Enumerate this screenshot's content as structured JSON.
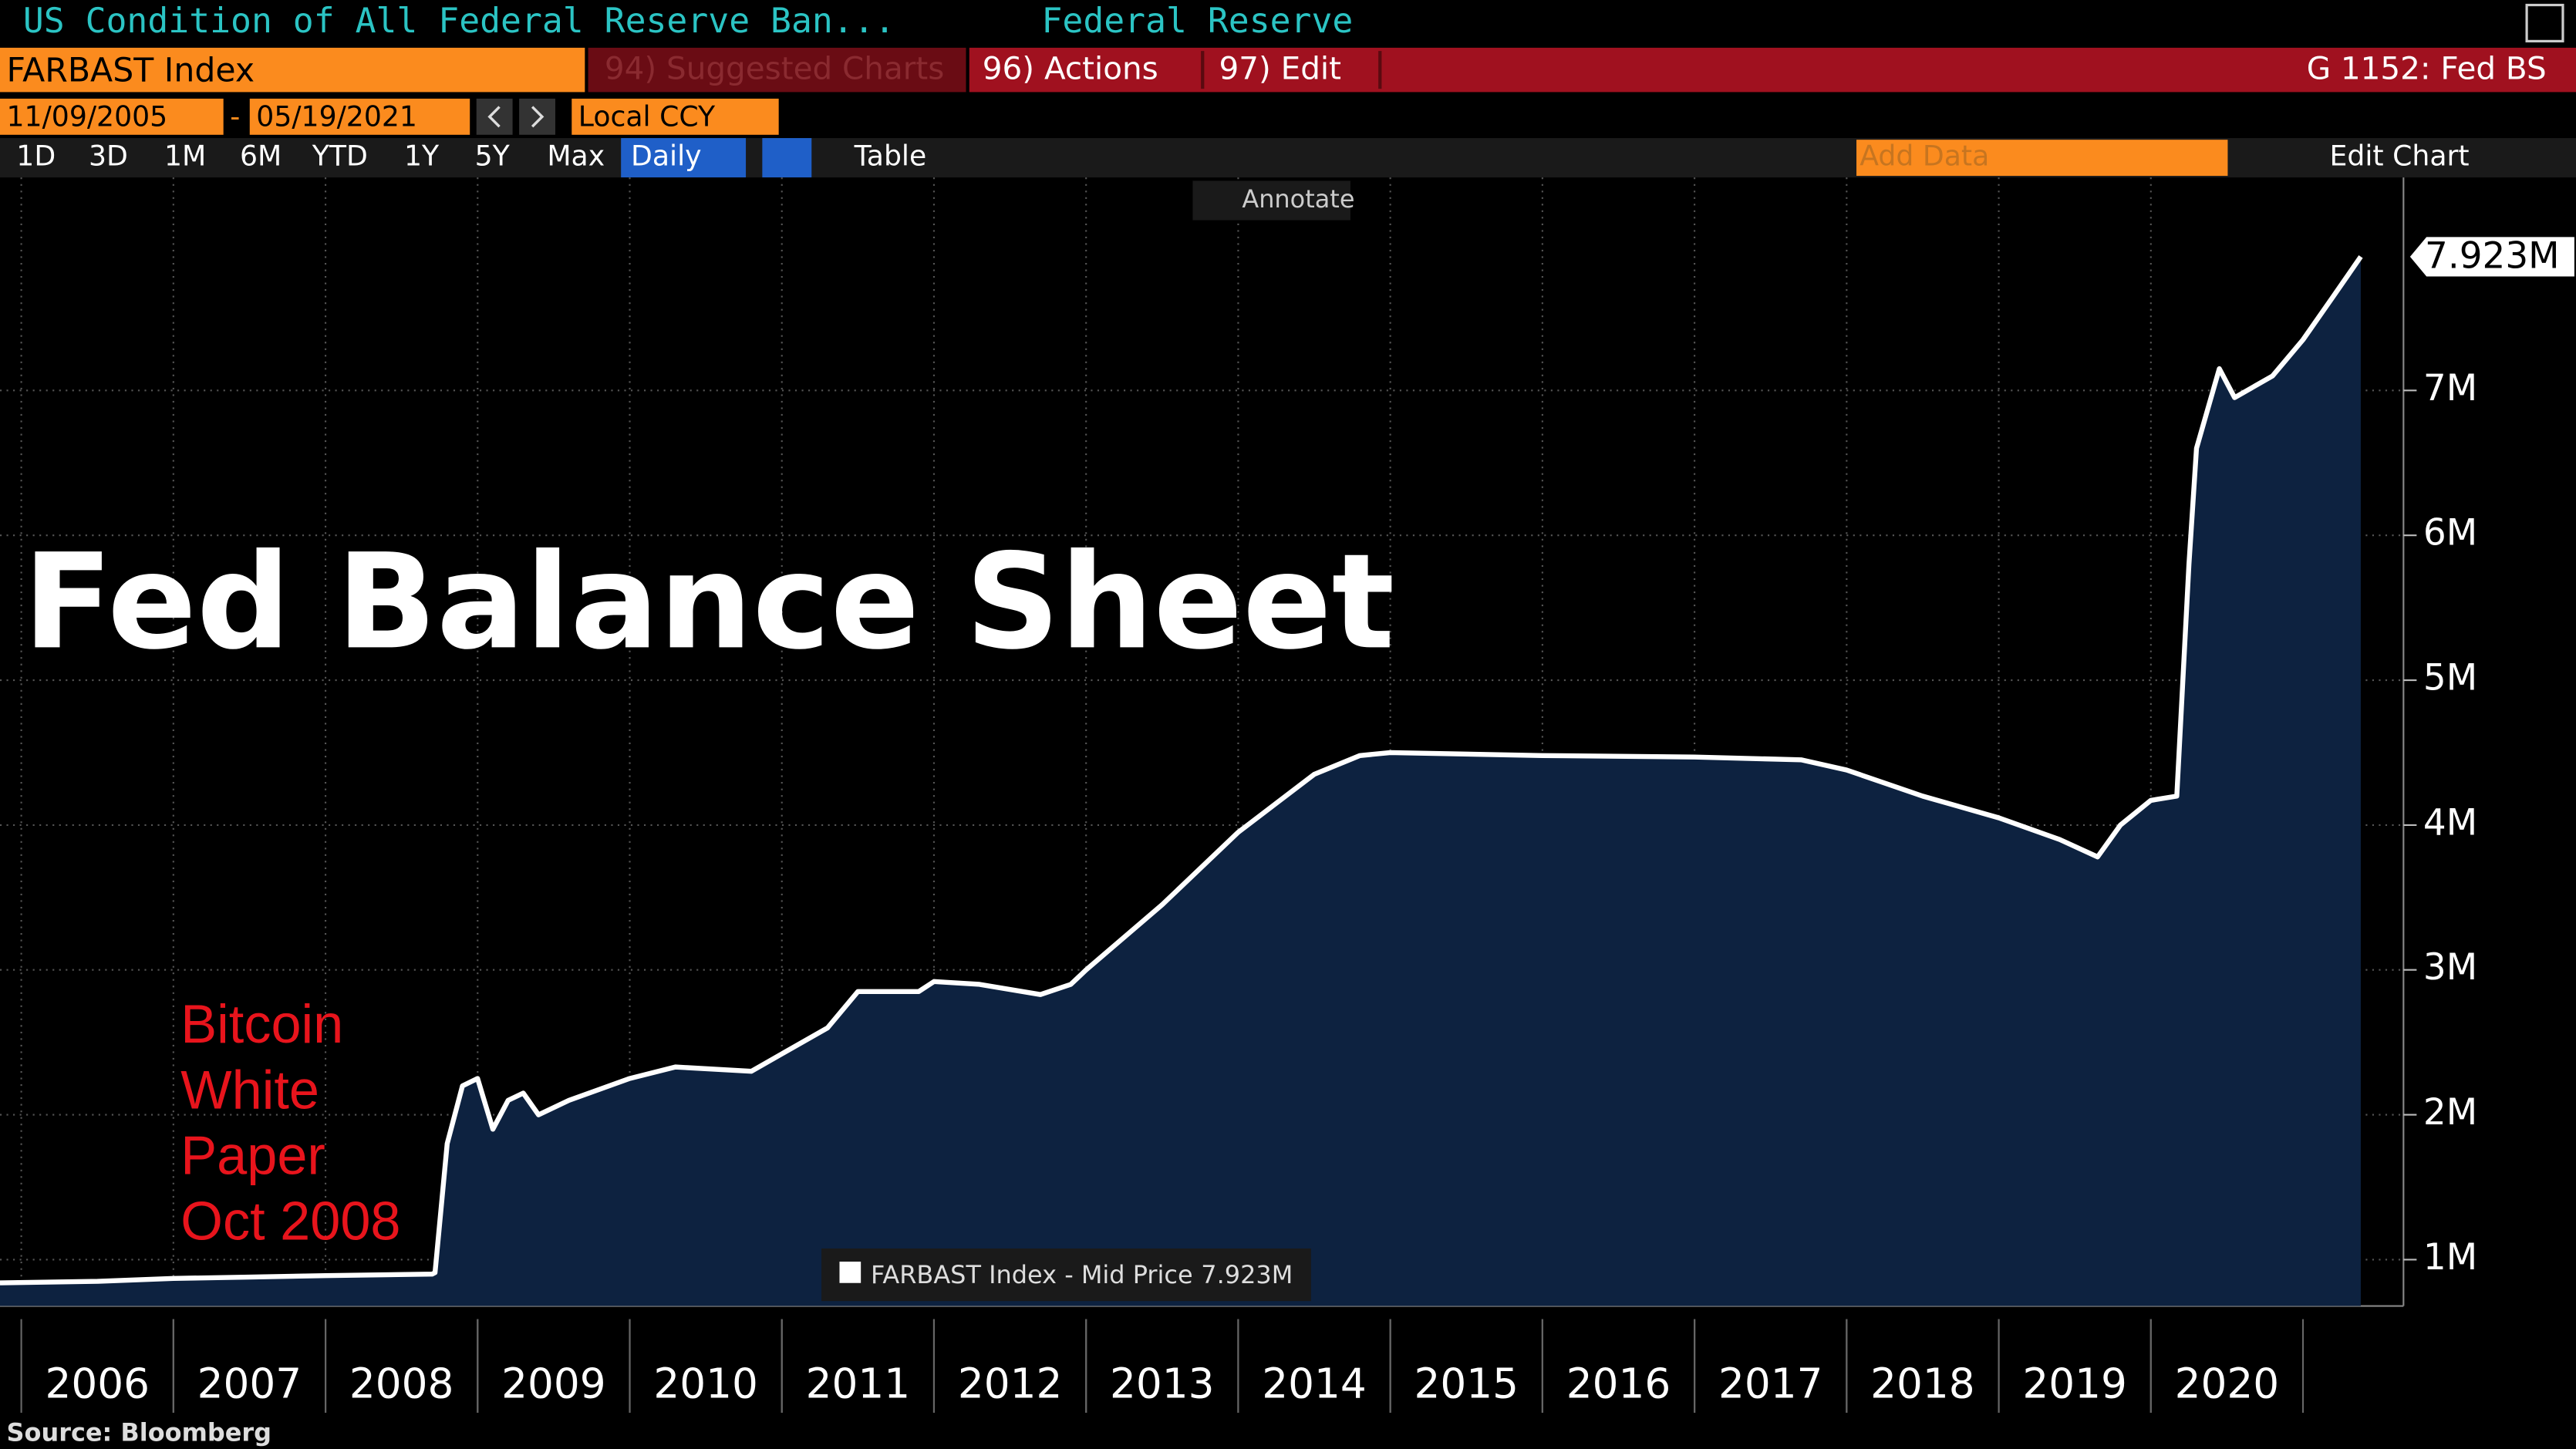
{
  "header": {
    "security_title": "US Condition of All Federal Reserve Ban...",
    "source_name": "Federal Reserve",
    "ticker": "FARBAST Index",
    "suggested": "94) Suggested Charts",
    "actions": "96) Actions",
    "edit": "97) Edit",
    "function": "G 1152: Fed BS",
    "start_date": "11/09/2005",
    "end_date": "05/19/2021",
    "currency": "Local CCY",
    "ranges": [
      "1D",
      "3D",
      "1M",
      "6M",
      "YTD",
      "1Y",
      "5Y",
      "Max"
    ],
    "frequency": "Daily",
    "table": "Table",
    "add_data": "Add Data",
    "edit_chart": "Edit Chart",
    "annotate": "Annotate"
  },
  "chart_data": {
    "type": "area",
    "title": "Fed Balance Sheet",
    "annotation": [
      "Bitcoin",
      "White",
      "Paper",
      "Oct 2008"
    ],
    "source": "Source: Bloomberg",
    "x": [
      2005.86,
      2006.5,
      2007.0,
      2007.5,
      2008.0,
      2008.7,
      2008.72,
      2008.8,
      2008.9,
      2009.0,
      2009.1,
      2009.2,
      2009.3,
      2009.4,
      2009.6,
      2010.0,
      2010.3,
      2010.8,
      2011.0,
      2011.3,
      2011.5,
      2011.9,
      2012.0,
      2012.3,
      2012.7,
      2012.9,
      2013.0,
      2013.5,
      2014.0,
      2014.5,
      2014.8,
      2015.0,
      2016.0,
      2017.0,
      2017.7,
      2018.0,
      2018.5,
      2019.0,
      2019.4,
      2019.65,
      2019.8,
      2020.0,
      2020.17,
      2020.25,
      2020.3,
      2020.45,
      2020.55,
      2020.8,
      2021.0,
      2021.2,
      2021.38
    ],
    "series": [
      {
        "name": "FARBAST Index - Mid Price",
        "color": "#ffffff",
        "fill": "#0d2240",
        "values": [
          0.84,
          0.85,
          0.87,
          0.88,
          0.89,
          0.9,
          0.91,
          1.8,
          2.2,
          2.25,
          1.9,
          2.1,
          2.15,
          2.0,
          2.1,
          2.25,
          2.33,
          2.3,
          2.42,
          2.6,
          2.85,
          2.85,
          2.92,
          2.9,
          2.83,
          2.9,
          3.0,
          3.45,
          3.95,
          4.35,
          4.48,
          4.5,
          4.48,
          4.47,
          4.45,
          4.38,
          4.2,
          4.05,
          3.9,
          3.78,
          4.0,
          4.17,
          4.2,
          5.8,
          6.6,
          7.15,
          6.95,
          7.1,
          7.35,
          7.65,
          7.923
        ],
        "value_labels": [
          null,
          null,
          null,
          null,
          null,
          null,
          null,
          null,
          null,
          null,
          null,
          null,
          null,
          null,
          null,
          null,
          null,
          null,
          null,
          null,
          null,
          null,
          null,
          null,
          null,
          null,
          null,
          null,
          null,
          null,
          null,
          null,
          null,
          null,
          null,
          null,
          null,
          null,
          null,
          null,
          null,
          null,
          null,
          null,
          null,
          null,
          null,
          null,
          null,
          null,
          "7.923M"
        ]
      }
    ],
    "xlim": [
      2005.86,
      2021.38
    ],
    "xticks": [
      2006,
      2007,
      2008,
      2009,
      2010,
      2011,
      2012,
      2013,
      2014,
      2015,
      2016,
      2017,
      2018,
      2019,
      2020
    ],
    "ylim": [
      0.68,
      8.47
    ],
    "yticks": [
      {
        "value": 1,
        "label": "1M"
      },
      {
        "value": 2,
        "label": "2M"
      },
      {
        "value": 3,
        "label": "3M"
      },
      {
        "value": 4,
        "label": "4M"
      },
      {
        "value": 5,
        "label": "5M"
      },
      {
        "value": 6,
        "label": "6M"
      },
      {
        "value": 7,
        "label": "7M"
      }
    ],
    "grid": true
  }
}
